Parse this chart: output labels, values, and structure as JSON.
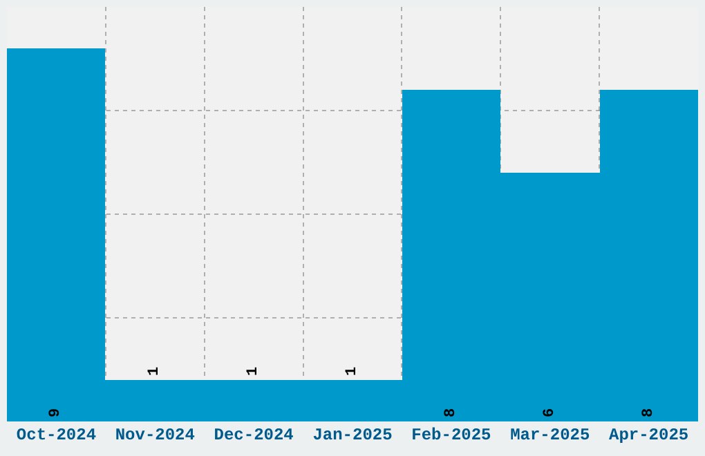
{
  "chart_data": {
    "type": "bar",
    "categories": [
      "Oct-2024",
      "Nov-2024",
      "Dec-2024",
      "Jan-2025",
      "Feb-2025",
      "Mar-2025",
      "Apr-2025"
    ],
    "values": [
      9,
      1,
      1,
      1,
      8,
      6,
      8
    ],
    "color": "#0099cc",
    "ylim": [
      0,
      10
    ],
    "yticks": [
      {
        "value": 2.5,
        "label": null
      },
      {
        "value": 5,
        "label": null
      },
      {
        "value": 7.5,
        "label": null
      }
    ],
    "tick_labels": "x",
    "grid": true,
    "data_labels": true
  }
}
